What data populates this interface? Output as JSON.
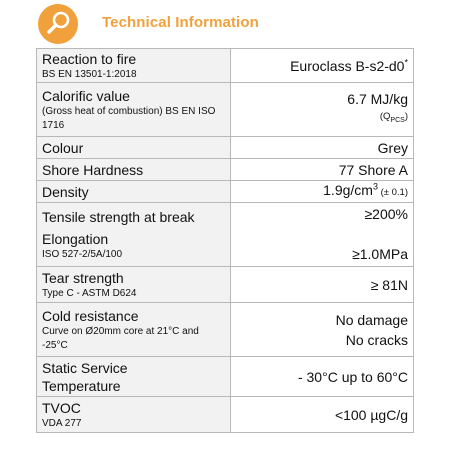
{
  "header": {
    "title": "Technical Information",
    "icon": "magnifier-icon",
    "accent_color": "#f0a13c"
  },
  "rows": [
    {
      "label": "Reaction to fire",
      "sub": "BS EN 13501-1:2018",
      "value": "Euroclass B-s2-d0",
      "value_sup": "*"
    },
    {
      "label": "Calorific value",
      "sub": "(Gross heat of combustion) BS EN ISO 1716",
      "value": "6.7 MJ/kg",
      "value_note": "(Q",
      "value_note_sub": "PCS",
      "value_note_end": ")"
    },
    {
      "label": "Colour",
      "value": "Grey"
    },
    {
      "label": "Shore Hardness",
      "value": "77 Shore A"
    },
    {
      "label": "Density",
      "value": "1.9g/cm",
      "value_sup": "3",
      "value_note": " (± 0.1)"
    },
    {
      "label": "Tensile strength at break",
      "label2": "Elongation",
      "sub": "ISO 527-2/5A/100",
      "value": "≥200%",
      "value2": "≥1.0MPa"
    },
    {
      "label": "Tear strength",
      "sub": "Type C - ASTM D624",
      "value": "≥ 81N"
    },
    {
      "label": "Cold resistance",
      "sub": "Curve on Ø20mm core at 21°C and -25°C",
      "value": "No damage",
      "value2": "No cracks"
    },
    {
      "label": "Static Service",
      "label2": "Temperature",
      "value": "- 30°C up to 60°C"
    },
    {
      "label": "TVOC",
      "sub": "VDA 277",
      "value": "<100 µgC/g"
    }
  ]
}
